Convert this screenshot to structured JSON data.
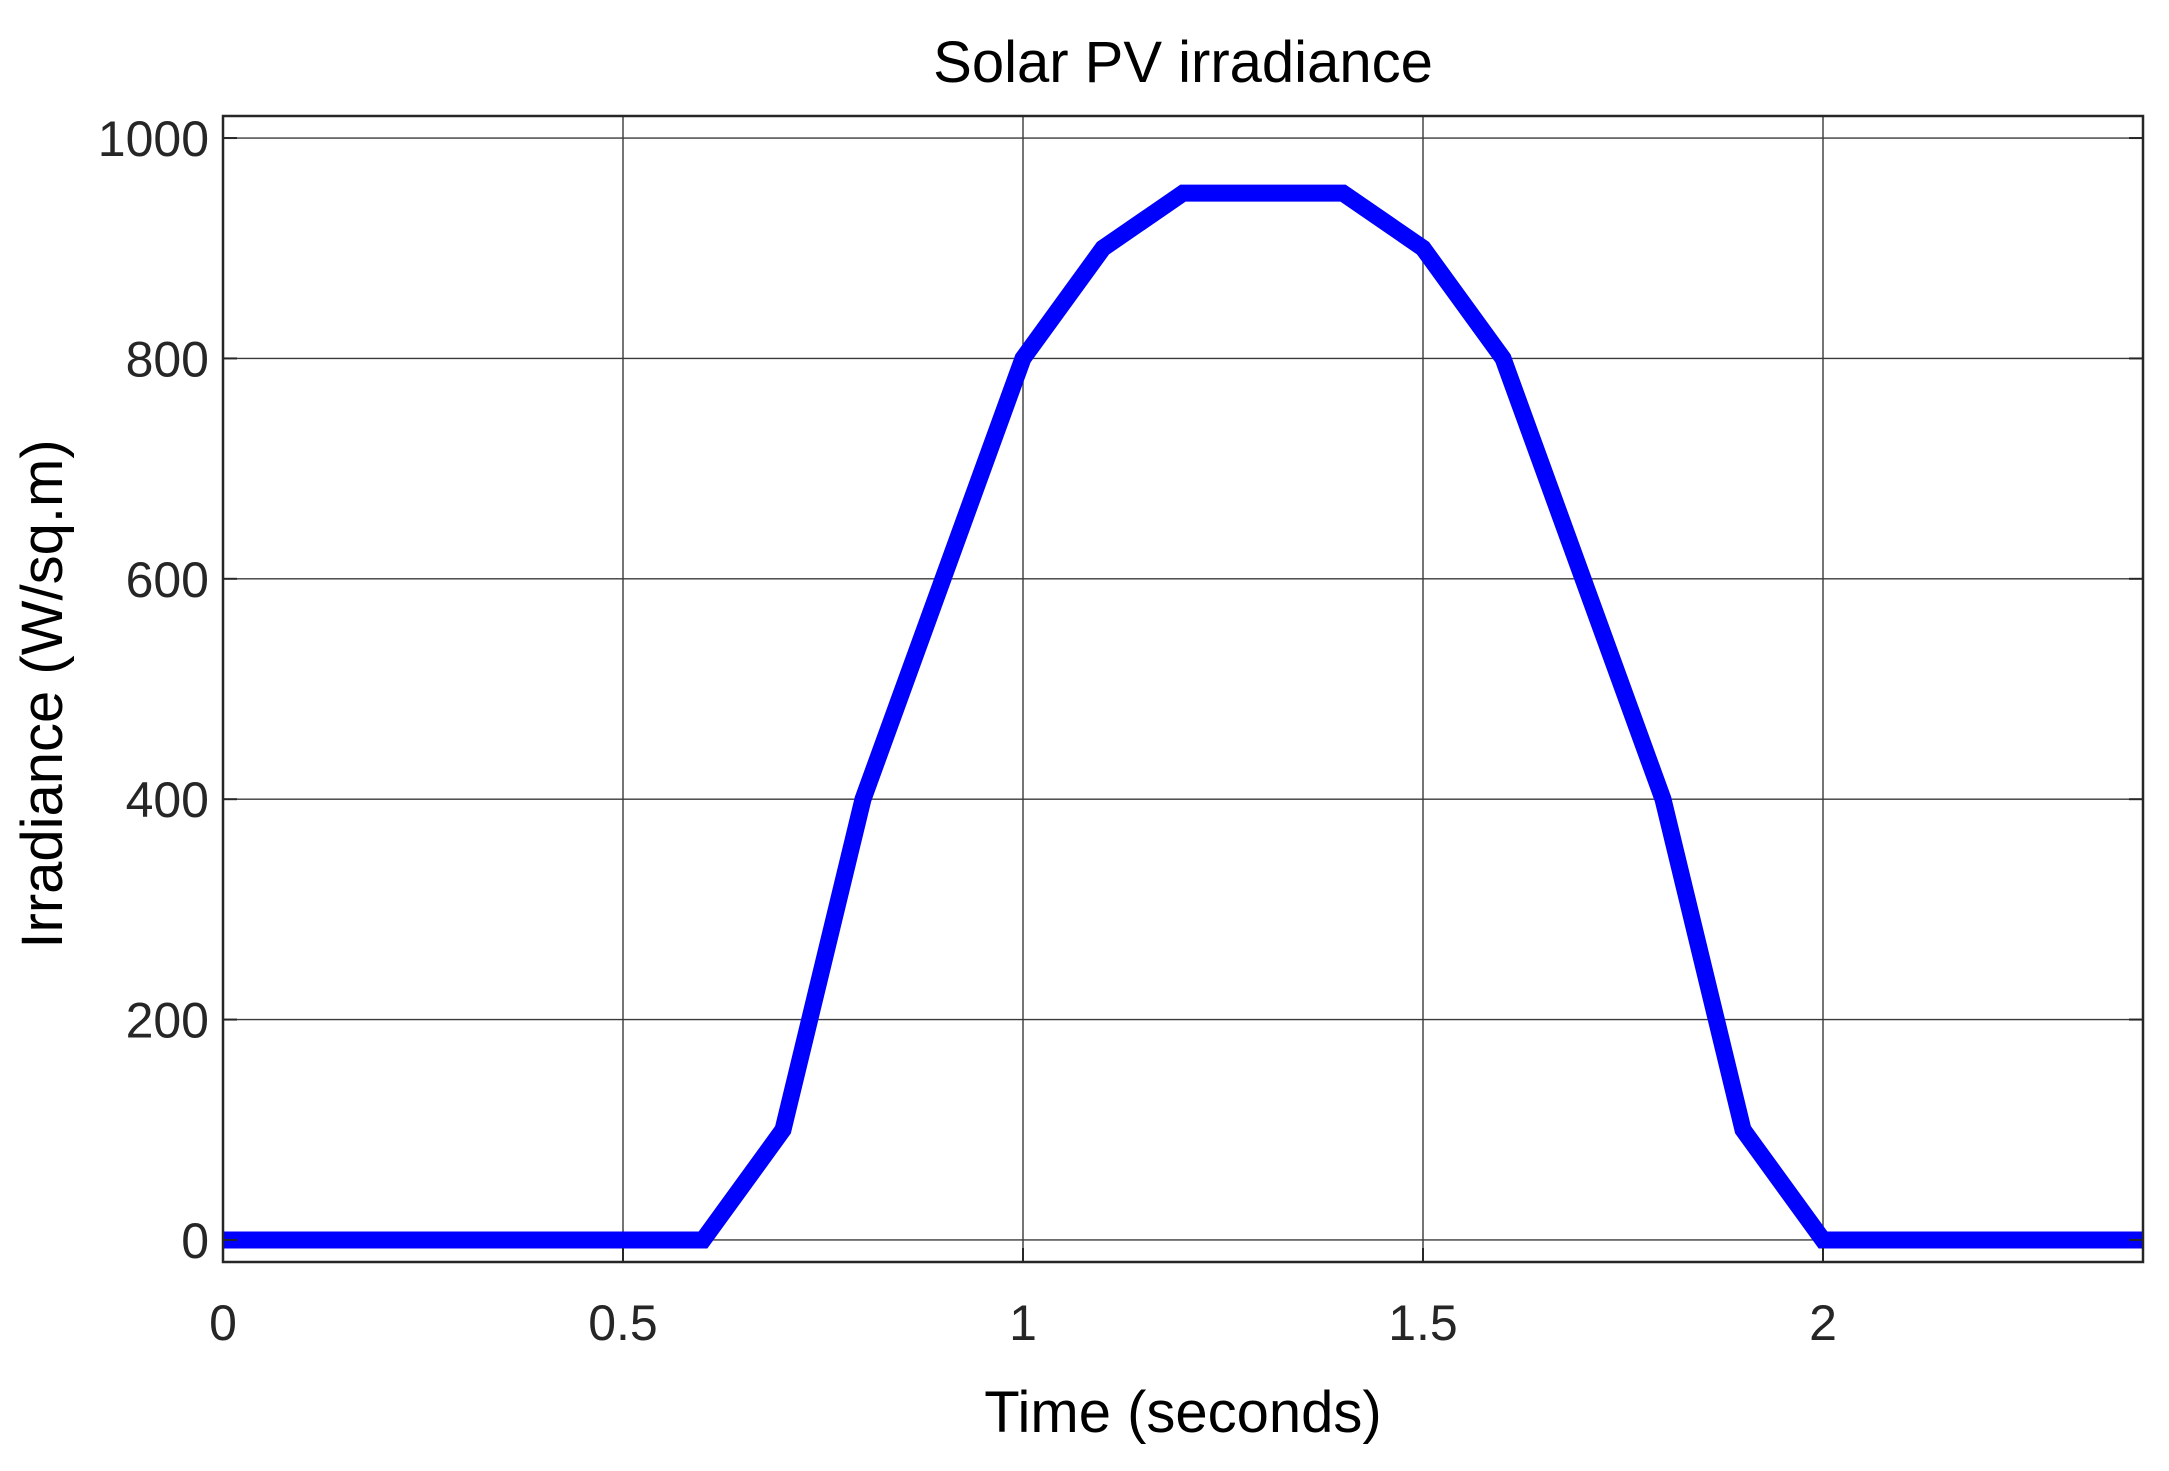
{
  "chart_data": {
    "type": "line",
    "title": "Solar PV irradiance",
    "xlabel": "Time (seconds)",
    "ylabel": "Irradiance (W/sq.m)",
    "xlim": [
      0,
      2.4
    ],
    "ylim": [
      -20,
      1020
    ],
    "xticks": [
      0,
      0.5,
      1,
      1.5,
      2
    ],
    "xtick_labels": [
      "0",
      "0.5",
      "1",
      "1.5",
      "2"
    ],
    "yticks": [
      0,
      200,
      400,
      600,
      800,
      1000
    ],
    "ytick_labels": [
      "0",
      "200",
      "400",
      "600",
      "800",
      "1000"
    ],
    "grid": true,
    "series": [
      {
        "name": "Irradiance",
        "color": "#0000ff",
        "x": [
          0,
          0.6,
          0.7,
          0.8,
          1.0,
          1.1,
          1.2,
          1.4,
          1.5,
          1.6,
          1.8,
          1.9,
          2.0,
          2.4
        ],
        "y": [
          0,
          0,
          100,
          400,
          800,
          900,
          950,
          950,
          900,
          800,
          400,
          100,
          0,
          0
        ]
      }
    ]
  }
}
